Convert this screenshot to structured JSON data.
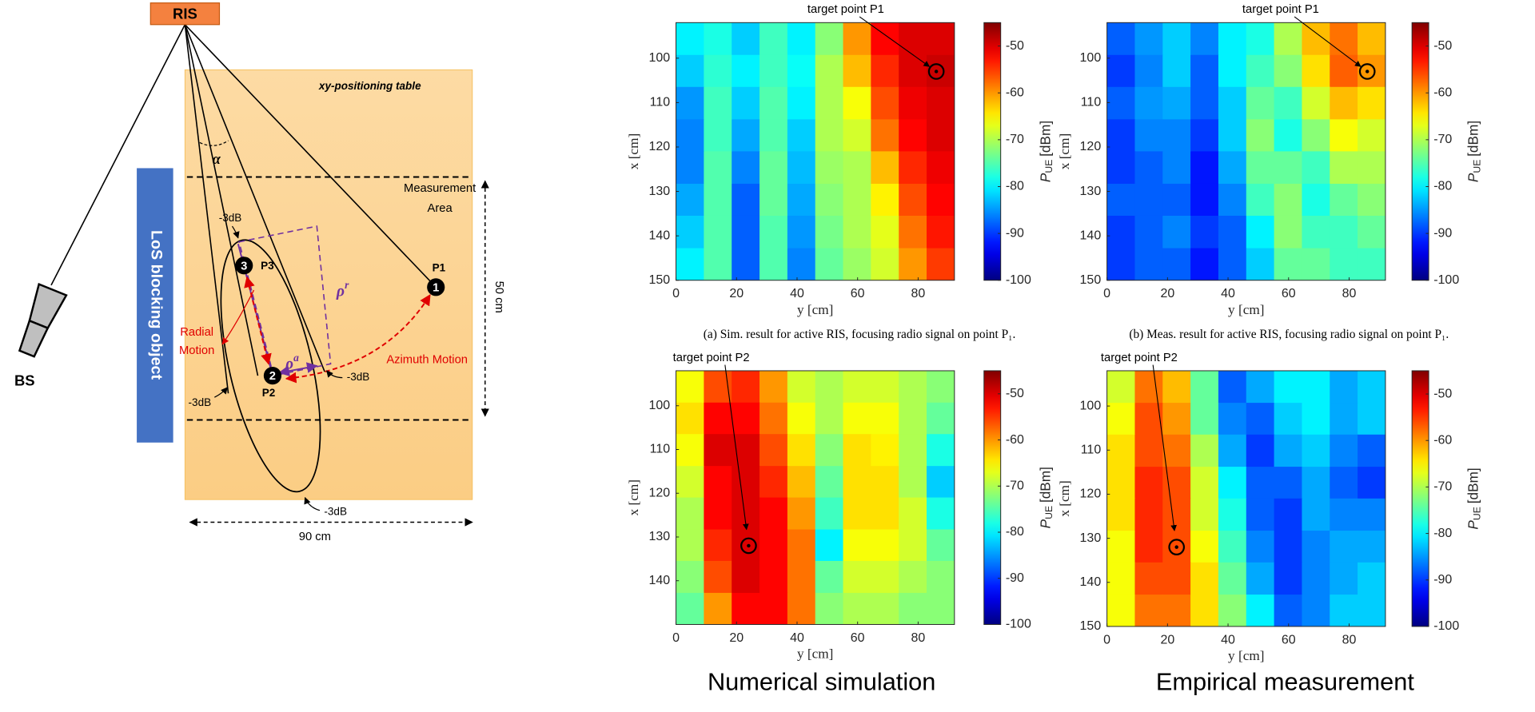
{
  "diagram": {
    "ris": "RIS",
    "table_label": "xy-positioning table",
    "alpha": "α",
    "measurement_area": [
      "Measurement",
      "Area"
    ],
    "blocking": "LoS blocking object",
    "minus3db": [
      "-3dB",
      "-3dB",
      "-3dB",
      "-3dB"
    ],
    "points": [
      {
        "number": "3",
        "label": "P3"
      },
      {
        "number": "2",
        "label": "P2"
      },
      {
        "number": "1",
        "label": "P1"
      }
    ],
    "rho_r": {
      "symbol": "ρ",
      "sup": "r"
    },
    "rho_a": {
      "symbol": "ρ",
      "sup": "a"
    },
    "radial_motion": [
      "Radial",
      "Motion"
    ],
    "azimuth_motion": "Azimuth Motion",
    "dim_50": "50 cm",
    "dim_90": "90 cm",
    "bs": "BS"
  },
  "chart_data": [
    {
      "type": "heatmap",
      "colormap": "jet",
      "clim": [
        -100,
        -45
      ],
      "xlabel": "y [cm]",
      "ylabel": "x [cm]",
      "colorbar_label": {
        "symbol": "P",
        "subscript": "UE",
        "unit": "[dBm]"
      },
      "xlim": [
        0,
        92
      ],
      "ylim": [
        92,
        150
      ],
      "xticks": [
        0,
        20,
        40,
        60,
        80
      ],
      "yticks": [
        100,
        110,
        120,
        130,
        140,
        150
      ],
      "cticks": [
        -100,
        -90,
        -80,
        -70,
        -60,
        -50
      ],
      "annotation": {
        "text": "target point P1",
        "point": [
          86,
          103
        ]
      },
      "caption": "(a) Sim. result for active RIS, focusing radio signal on point P₁.",
      "x": [
        4.6,
        13.8,
        23,
        32.2,
        41.4,
        50.6,
        59.8,
        69,
        78.2,
        87.4
      ],
      "y": [
        95.6,
        102.9,
        110.1,
        117.4,
        124.6,
        131.9,
        139.1,
        146.4
      ],
      "values": [
        [
          -80,
          -78,
          -82,
          -76,
          -80,
          -72,
          -60,
          -52,
          -50,
          -50
        ],
        [
          -82,
          -77,
          -80,
          -76,
          -79,
          -70,
          -62,
          -54,
          -50,
          -49
        ],
        [
          -85,
          -76,
          -82,
          -75,
          -80,
          -70,
          -66,
          -56,
          -51,
          -50
        ],
        [
          -86,
          -76,
          -84,
          -75,
          -82,
          -70,
          -68,
          -58,
          -52,
          -50
        ],
        [
          -86,
          -75,
          -86,
          -74,
          -83,
          -71,
          -70,
          -62,
          -54,
          -51
        ],
        [
          -84,
          -75,
          -88,
          -74,
          -84,
          -72,
          -70,
          -65,
          -56,
          -52
        ],
        [
          -82,
          -75,
          -88,
          -75,
          -85,
          -73,
          -70,
          -67,
          -58,
          -53
        ],
        [
          -80,
          -75,
          -88,
          -75,
          -86,
          -74,
          -71,
          -68,
          -60,
          -55
        ]
      ]
    },
    {
      "type": "heatmap",
      "colormap": "jet",
      "clim": [
        -100,
        -45
      ],
      "xlabel": "y [cm]",
      "ylabel": "x [cm]",
      "colorbar_label": {
        "symbol": "P",
        "subscript": "UE",
        "unit": "[dBm]"
      },
      "xlim": [
        0,
        92
      ],
      "ylim": [
        92,
        150
      ],
      "xticks": [
        0,
        20,
        40,
        60,
        80
      ],
      "yticks": [
        100,
        110,
        120,
        130,
        140,
        150
      ],
      "cticks": [
        -100,
        -90,
        -80,
        -70,
        -60,
        -50
      ],
      "annotation": {
        "text": "target point P1",
        "point": [
          86,
          103
        ]
      },
      "caption": "(b) Meas. result for active RIS, focusing radio signal on point P₁.",
      "x": [
        4.6,
        13.8,
        23,
        32.2,
        41.4,
        50.6,
        59.8,
        69,
        78.2,
        87.4
      ],
      "y": [
        95.6,
        102.9,
        110.1,
        117.4,
        124.6,
        131.9,
        139.1,
        146.4
      ],
      "values": [
        [
          -88,
          -85,
          -82,
          -86,
          -80,
          -78,
          -70,
          -62,
          -58,
          -62
        ],
        [
          -90,
          -86,
          -82,
          -88,
          -80,
          -76,
          -72,
          -64,
          -57,
          -60
        ],
        [
          -88,
          -85,
          -84,
          -88,
          -82,
          -74,
          -76,
          -68,
          -62,
          -64
        ],
        [
          -90,
          -86,
          -86,
          -90,
          -82,
          -72,
          -78,
          -72,
          -66,
          -68
        ],
        [
          -90,
          -88,
          -86,
          -92,
          -84,
          -74,
          -74,
          -76,
          -70,
          -70
        ],
        [
          -88,
          -88,
          -88,
          -92,
          -86,
          -76,
          -72,
          -78,
          -74,
          -72
        ],
        [
          -90,
          -88,
          -86,
          -90,
          -88,
          -80,
          -72,
          -76,
          -76,
          -74
        ],
        [
          -90,
          -88,
          -88,
          -92,
          -88,
          -82,
          -74,
          -74,
          -76,
          -76
        ]
      ]
    },
    {
      "type": "heatmap",
      "colormap": "jet",
      "clim": [
        -100,
        -45
      ],
      "xlabel": "y [cm]",
      "ylabel": "x [cm]",
      "colorbar_label": {
        "symbol": "P",
        "subscript": "UE",
        "unit": "[dBm]"
      },
      "xlim": [
        0,
        92
      ],
      "ylim": [
        92,
        150
      ],
      "xticks": [
        0,
        20,
        40,
        60,
        80
      ],
      "yticks": [
        100,
        110,
        120,
        130,
        140
      ],
      "cticks": [
        -100,
        -90,
        -80,
        -70,
        -60,
        -50
      ],
      "annotation": {
        "text": "target point P2",
        "point": [
          24,
          132
        ]
      },
      "x": [
        4.6,
        13.8,
        23,
        32.2,
        41.4,
        50.6,
        59.8,
        69,
        78.2,
        87.4
      ],
      "y": [
        95.6,
        102.9,
        110.1,
        117.4,
        124.6,
        131.9,
        139.1,
        146.4
      ],
      "values": [
        [
          -66,
          -56,
          -54,
          -60,
          -68,
          -70,
          -68,
          -68,
          -70,
          -72
        ],
        [
          -64,
          -52,
          -52,
          -58,
          -66,
          -70,
          -66,
          -66,
          -70,
          -74
        ],
        [
          -66,
          -50,
          -50,
          -56,
          -64,
          -72,
          -64,
          -65,
          -70,
          -78
        ],
        [
          -68,
          -52,
          -50,
          -54,
          -62,
          -74,
          -64,
          -64,
          -70,
          -82
        ],
        [
          -70,
          -52,
          -50,
          -52,
          -60,
          -76,
          -64,
          -64,
          -68,
          -78
        ],
        [
          -70,
          -54,
          -50,
          -52,
          -58,
          -80,
          -66,
          -66,
          -68,
          -74
        ],
        [
          -72,
          -56,
          -50,
          -52,
          -58,
          -74,
          -68,
          -68,
          -70,
          -72
        ],
        [
          -74,
          -60,
          -52,
          -52,
          -58,
          -72,
          -70,
          -70,
          -72,
          -72
        ]
      ]
    },
    {
      "type": "heatmap",
      "colormap": "jet",
      "clim": [
        -100,
        -45
      ],
      "xlabel": "y [cm]",
      "ylabel": "x [cm]",
      "colorbar_label": {
        "symbol": "P",
        "subscript": "UE",
        "unit": "[dBm]"
      },
      "xlim": [
        0,
        92
      ],
      "ylim": [
        92,
        150
      ],
      "xticks": [
        0,
        20,
        40,
        60,
        80
      ],
      "yticks": [
        100,
        110,
        120,
        130,
        140,
        150
      ],
      "cticks": [
        -100,
        -90,
        -80,
        -70,
        -60,
        -50
      ],
      "annotation": {
        "text": "target point P2",
        "point": [
          23,
          132
        ]
      },
      "x": [
        4.6,
        13.8,
        23,
        32.2,
        41.4,
        50.6,
        59.8,
        69,
        78.2,
        87.4
      ],
      "y": [
        95.6,
        102.9,
        110.1,
        117.4,
        124.6,
        131.9,
        139.1,
        146.4
      ],
      "values": [
        [
          -68,
          -58,
          -62,
          -74,
          -88,
          -84,
          -80,
          -80,
          -84,
          -82
        ],
        [
          -66,
          -56,
          -60,
          -74,
          -86,
          -88,
          -82,
          -80,
          -84,
          -82
        ],
        [
          -64,
          -56,
          -58,
          -70,
          -84,
          -90,
          -84,
          -82,
          -86,
          -88
        ],
        [
          -64,
          -54,
          -56,
          -68,
          -80,
          -88,
          -88,
          -84,
          -88,
          -90
        ],
        [
          -64,
          -54,
          -56,
          -68,
          -78,
          -88,
          -90,
          -84,
          -86,
          -86
        ],
        [
          -66,
          -54,
          -56,
          -66,
          -76,
          -86,
          -90,
          -86,
          -84,
          -84
        ],
        [
          -66,
          -56,
          -56,
          -64,
          -74,
          -84,
          -90,
          -86,
          -84,
          -82
        ],
        [
          -66,
          -58,
          -58,
          -64,
          -72,
          -80,
          -88,
          -86,
          -82,
          -82
        ]
      ]
    }
  ],
  "footer": {
    "left": "Numerical simulation",
    "right": "Empirical measurement"
  }
}
